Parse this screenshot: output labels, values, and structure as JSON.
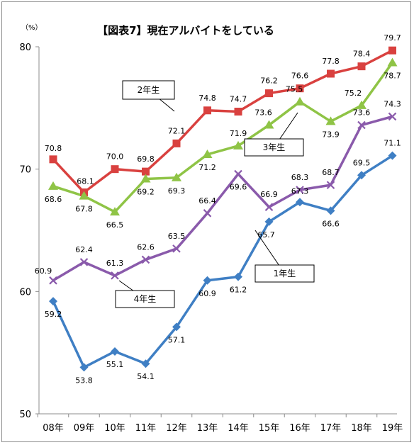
{
  "chart_data": {
    "type": "line",
    "title": "【図表7】現在アルバイトをしている",
    "unit_label": "（%）",
    "categories": [
      "08年",
      "09年",
      "10年",
      "11年",
      "12年",
      "13年",
      "14年",
      "15年",
      "16年",
      "17年",
      "18年",
      "19年"
    ],
    "y_ticks": [
      "80",
      "70",
      "60",
      "50"
    ],
    "ylim": [
      50,
      80
    ],
    "grid": false,
    "series": [
      {
        "name": "1年生",
        "color": "#3f7fc4",
        "marker": "diamond",
        "values": [
          59.2,
          53.8,
          55.1,
          54.1,
          57.1,
          60.9,
          61.2,
          65.7,
          67.3,
          66.6,
          69.5,
          71.1
        ]
      },
      {
        "name": "2年生",
        "color": "#d9413f",
        "marker": "square",
        "values": [
          70.8,
          68.1,
          70.0,
          69.8,
          72.1,
          74.8,
          74.7,
          76.2,
          76.6,
          77.8,
          78.4,
          79.7
        ]
      },
      {
        "name": "3年生",
        "color": "#8fc446",
        "marker": "triangle",
        "values": [
          68.6,
          67.8,
          66.5,
          69.2,
          69.3,
          71.2,
          71.9,
          73.6,
          75.5,
          73.9,
          75.2,
          78.7
        ]
      },
      {
        "name": "4年生",
        "color": "#8a5aab",
        "marker": "x",
        "values": [
          60.9,
          62.4,
          61.3,
          62.6,
          63.5,
          66.4,
          69.6,
          66.9,
          68.3,
          68.7,
          73.6,
          74.3
        ]
      }
    ],
    "callouts": [
      "2年生",
      "3年生",
      "1年生",
      "4年生"
    ]
  }
}
